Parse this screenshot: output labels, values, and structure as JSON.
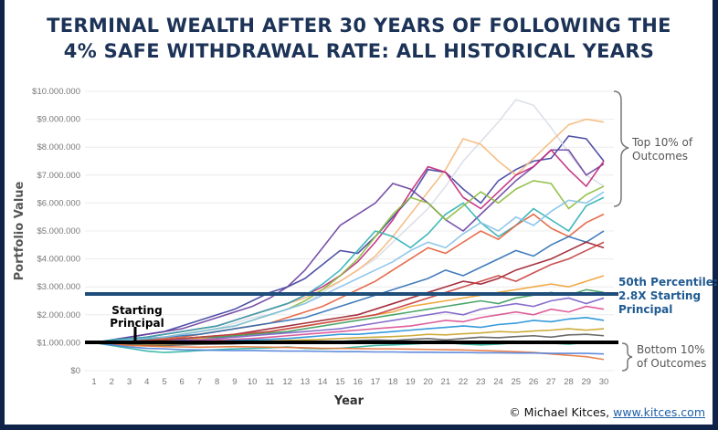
{
  "title_line1": "TERMINAL WEALTH AFTER 30 YEARS OF FOLLOWING THE",
  "title_line2": "4% SAFE WITHDRAWAL RATE: ALL HISTORICAL YEARS",
  "footer": {
    "copyright": "© Michael Kitces,",
    "link": "www.kitces.com"
  },
  "annotations": {
    "starting_principal_1": "Starting",
    "starting_principal_2": "Principal",
    "median_1": "50th Percentile:",
    "median_2": "2.8X Starting",
    "median_3": "Principal",
    "top_1": "Top 10% of",
    "top_2": "Outcomes",
    "bottom_1": "Bottom 10%",
    "bottom_2": "of Outcomes"
  },
  "colors": {
    "title": "#1c3357",
    "median": "#1f4e7a",
    "principal": "#000000",
    "median_text": "#1f5a91"
  },
  "chart_data": {
    "type": "line",
    "title": "Terminal Wealth After 30 Years of Following the 4% Safe Withdrawal Rate: All Historical Years",
    "xlabel": "Year",
    "ylabel": "Portfolio Value",
    "x": [
      1,
      2,
      3,
      4,
      5,
      6,
      7,
      8,
      9,
      10,
      11,
      12,
      13,
      14,
      15,
      16,
      17,
      18,
      19,
      20,
      21,
      22,
      23,
      24,
      25,
      26,
      27,
      28,
      29,
      30
    ],
    "xtick_labels": [
      "1",
      "2",
      "3",
      "4",
      "5",
      "6",
      "7",
      "8",
      "9",
      "10",
      "11",
      "12",
      "13",
      "14",
      "15",
      "16",
      "17",
      "18",
      "19",
      "20",
      "21",
      "22",
      "23",
      "24",
      "25",
      "26",
      "27",
      "28",
      "29",
      "30"
    ],
    "ylim": [
      0,
      10000000
    ],
    "value_unit": "millions of dollars",
    "ytick_labels": [
      "$0",
      "$1.000.000",
      "$2.000.000",
      "$3.000.000",
      "$4.000.000",
      "$5.000.000",
      "$6.000.000",
      "$7.000.000",
      "$8.000.000",
      "$9.000.000",
      "$10.000.000"
    ],
    "reference_lines": [
      {
        "name": "50th Percentile",
        "value": 2.75
      },
      {
        "name": "Starting Principal",
        "value": 1.0
      }
    ],
    "grid": true,
    "series": [
      {
        "color": "#3d3f9e",
        "values": [
          1.0,
          1.1,
          1.2,
          1.3,
          1.4,
          1.6,
          1.8,
          2.0,
          2.2,
          2.5,
          2.8,
          3.0,
          3.3,
          3.8,
          4.3,
          4.2,
          4.8,
          5.5,
          6.2,
          7.2,
          7.1,
          6.5,
          6.0,
          6.8,
          7.2,
          7.5,
          7.6,
          8.4,
          8.3,
          7.5
        ]
      },
      {
        "color": "#d8dde6",
        "values": [
          1.0,
          1.05,
          1.1,
          1.15,
          1.2,
          1.3,
          1.4,
          1.5,
          1.7,
          1.9,
          2.0,
          2.2,
          2.4,
          2.8,
          3.2,
          3.6,
          4.0,
          4.6,
          5.2,
          5.8,
          6.6,
          7.5,
          8.2,
          8.9,
          9.7,
          9.5,
          8.7,
          7.8,
          7.0,
          6.6
        ]
      },
      {
        "color": "#f5b87a",
        "values": [
          1.0,
          1.1,
          1.15,
          1.2,
          1.3,
          1.4,
          1.5,
          1.6,
          1.8,
          2.0,
          2.2,
          2.4,
          2.6,
          2.9,
          3.2,
          3.6,
          4.1,
          4.8,
          5.6,
          6.4,
          7.2,
          8.3,
          8.1,
          7.5,
          7.0,
          7.6,
          8.2,
          8.8,
          9.0,
          8.9
        ]
      },
      {
        "color": "#6a3fa0",
        "values": [
          1.0,
          1.1,
          1.2,
          1.3,
          1.4,
          1.5,
          1.7,
          1.9,
          2.1,
          2.3,
          2.6,
          3.0,
          3.6,
          4.4,
          5.2,
          5.6,
          6.0,
          6.7,
          6.5,
          6.0,
          5.4,
          5.0,
          5.6,
          6.2,
          6.8,
          7.3,
          7.9,
          7.9,
          7.0,
          7.4
        ]
      },
      {
        "color": "#c0267a",
        "values": [
          1.0,
          1.05,
          1.1,
          1.2,
          1.3,
          1.4,
          1.5,
          1.6,
          1.8,
          2.0,
          2.2,
          2.4,
          2.7,
          3.0,
          3.4,
          3.9,
          4.6,
          5.4,
          6.4,
          7.3,
          7.1,
          6.2,
          5.8,
          6.4,
          7.0,
          7.3,
          7.9,
          7.2,
          6.6,
          7.5
        ]
      },
      {
        "color": "#2db0b5",
        "values": [
          1.0,
          1.1,
          1.15,
          1.2,
          1.3,
          1.4,
          1.5,
          1.6,
          1.8,
          2.0,
          2.2,
          2.4,
          2.7,
          3.1,
          3.6,
          4.3,
          5.0,
          4.8,
          4.4,
          4.9,
          5.6,
          6.0,
          5.3,
          4.8,
          5.2,
          5.8,
          5.4,
          5.0,
          5.9,
          6.2
        ]
      },
      {
        "color": "#8bbb3c",
        "values": [
          1.0,
          1.05,
          1.1,
          1.15,
          1.2,
          1.3,
          1.4,
          1.5,
          1.6,
          1.8,
          2.0,
          2.2,
          2.5,
          2.9,
          3.4,
          4.0,
          4.8,
          5.6,
          6.2,
          6.0,
          5.4,
          5.9,
          6.4,
          6.0,
          6.5,
          6.8,
          6.7,
          5.8,
          6.3,
          6.6
        ]
      },
      {
        "color": "#e35d3a",
        "values": [
          1.0,
          1.0,
          1.05,
          1.1,
          1.15,
          1.2,
          1.3,
          1.4,
          1.5,
          1.6,
          1.7,
          1.9,
          2.1,
          2.3,
          2.6,
          2.9,
          3.2,
          3.6,
          4.0,
          4.4,
          4.2,
          4.6,
          5.0,
          4.7,
          5.2,
          5.6,
          5.1,
          4.8,
          5.3,
          5.6
        ]
      },
      {
        "color": "#2e6fb5",
        "values": [
          1.0,
          1.05,
          1.1,
          1.15,
          1.2,
          1.25,
          1.3,
          1.4,
          1.5,
          1.6,
          1.7,
          1.8,
          1.9,
          2.1,
          2.3,
          2.5,
          2.7,
          2.9,
          3.1,
          3.3,
          3.6,
          3.4,
          3.7,
          4.0,
          4.3,
          4.1,
          4.5,
          4.8,
          4.6,
          5.0
        ]
      },
      {
        "color": "#9b1d2b",
        "values": [
          1.0,
          1.0,
          1.05,
          1.05,
          1.1,
          1.15,
          1.2,
          1.25,
          1.3,
          1.4,
          1.5,
          1.6,
          1.7,
          1.8,
          1.9,
          2.0,
          2.2,
          2.4,
          2.6,
          2.8,
          3.0,
          3.2,
          3.1,
          3.3,
          3.6,
          3.8,
          4.0,
          4.3,
          4.6,
          4.4
        ]
      },
      {
        "color": "#f0a030",
        "values": [
          1.0,
          1.0,
          1.0,
          1.05,
          1.05,
          1.1,
          1.15,
          1.2,
          1.25,
          1.3,
          1.4,
          1.5,
          1.6,
          1.7,
          1.8,
          1.9,
          2.0,
          2.1,
          2.3,
          2.4,
          2.5,
          2.6,
          2.7,
          2.8,
          2.9,
          3.0,
          3.1,
          3.0,
          3.2,
          3.4
        ]
      },
      {
        "color": "#3a9b5c",
        "values": [
          1.0,
          1.05,
          1.05,
          1.1,
          1.1,
          1.15,
          1.2,
          1.2,
          1.25,
          1.3,
          1.35,
          1.4,
          1.5,
          1.6,
          1.7,
          1.8,
          1.9,
          2.0,
          2.1,
          2.2,
          2.3,
          2.4,
          2.5,
          2.4,
          2.6,
          2.7,
          2.8,
          2.7,
          2.9,
          2.8
        ]
      },
      {
        "color": "#7b5ec7",
        "values": [
          1.0,
          1.0,
          1.0,
          1.05,
          1.05,
          1.1,
          1.1,
          1.15,
          1.2,
          1.25,
          1.3,
          1.35,
          1.4,
          1.45,
          1.5,
          1.6,
          1.7,
          1.8,
          1.9,
          2.0,
          2.1,
          2.0,
          2.2,
          2.3,
          2.4,
          2.3,
          2.5,
          2.6,
          2.4,
          2.6
        ]
      },
      {
        "color": "#d94e8f",
        "values": [
          1.0,
          1.0,
          0.98,
          1.0,
          1.02,
          1.05,
          1.08,
          1.1,
          1.12,
          1.15,
          1.2,
          1.25,
          1.3,
          1.35,
          1.4,
          1.45,
          1.5,
          1.55,
          1.6,
          1.7,
          1.8,
          1.75,
          1.9,
          2.0,
          2.1,
          2.0,
          2.2,
          2.1,
          2.3,
          2.2
        ]
      },
      {
        "color": "#1f8fd6",
        "values": [
          1.0,
          0.98,
          0.95,
          0.95,
          0.97,
          1.0,
          1.02,
          1.05,
          1.08,
          1.1,
          1.12,
          1.15,
          1.2,
          1.25,
          1.3,
          1.3,
          1.35,
          1.4,
          1.45,
          1.5,
          1.55,
          1.6,
          1.55,
          1.65,
          1.7,
          1.8,
          1.75,
          1.85,
          1.9,
          1.8
        ]
      },
      {
        "color": "#c9a227",
        "values": [
          1.0,
          0.97,
          0.95,
          0.92,
          0.93,
          0.95,
          0.97,
          1.0,
          1.02,
          1.04,
          1.06,
          1.08,
          1.1,
          1.12,
          1.15,
          1.18,
          1.2,
          1.22,
          1.25,
          1.3,
          1.28,
          1.32,
          1.35,
          1.4,
          1.38,
          1.42,
          1.45,
          1.5,
          1.45,
          1.5
        ]
      },
      {
        "color": "#5a5a5a",
        "values": [
          1.0,
          0.95,
          0.92,
          0.9,
          0.9,
          0.92,
          0.94,
          0.95,
          0.96,
          0.98,
          1.0,
          1.02,
          1.0,
          1.03,
          1.05,
          1.08,
          1.1,
          1.08,
          1.12,
          1.15,
          1.1,
          1.15,
          1.2,
          1.18,
          1.22,
          1.25,
          1.2,
          1.28,
          1.3,
          1.25
        ]
      },
      {
        "color": "#2bb3a0",
        "values": [
          1.0,
          0.9,
          0.8,
          0.7,
          0.65,
          0.68,
          0.72,
          0.75,
          0.78,
          0.8,
          0.82,
          0.85,
          0.8,
          0.78,
          0.8,
          0.85,
          0.9,
          0.92,
          0.95,
          0.98,
          1.0,
          0.95,
          0.92,
          0.95,
          1.0,
          1.02,
          0.98,
          0.95,
          1.0,
          1.05
        ]
      },
      {
        "color": "#e8743b",
        "values": [
          1.0,
          0.95,
          0.9,
          0.88,
          0.86,
          0.85,
          0.84,
          0.85,
          0.86,
          0.85,
          0.84,
          0.83,
          0.82,
          0.8,
          0.8,
          0.79,
          0.78,
          0.78,
          0.77,
          0.76,
          0.75,
          0.74,
          0.72,
          0.7,
          0.68,
          0.65,
          0.6,
          0.55,
          0.5,
          0.4
        ]
      },
      {
        "color": "#4f7fd9",
        "values": [
          1.0,
          0.92,
          0.85,
          0.8,
          0.78,
          0.75,
          0.74,
          0.73,
          0.72,
          0.72,
          0.71,
          0.7,
          0.7,
          0.69,
          0.68,
          0.68,
          0.67,
          0.67,
          0.66,
          0.66,
          0.65,
          0.65,
          0.64,
          0.64,
          0.63,
          0.63,
          0.62,
          0.62,
          0.62,
          0.6
        ]
      },
      {
        "color": "#c73f3f",
        "values": [
          1.0,
          1.02,
          1.05,
          1.08,
          1.1,
          1.15,
          1.2,
          1.25,
          1.3,
          1.35,
          1.4,
          1.5,
          1.6,
          1.7,
          1.8,
          1.9,
          2.0,
          2.2,
          2.4,
          2.6,
          2.8,
          3.0,
          3.2,
          3.4,
          3.2,
          3.5,
          3.8,
          4.0,
          4.3,
          4.6
        ]
      },
      {
        "color": "#84c1e8",
        "values": [
          1.0,
          1.05,
          1.1,
          1.15,
          1.2,
          1.3,
          1.4,
          1.5,
          1.6,
          1.8,
          2.0,
          2.2,
          2.4,
          2.7,
          3.0,
          3.3,
          3.6,
          3.9,
          4.3,
          4.6,
          4.4,
          4.9,
          5.3,
          5.0,
          5.5,
          5.2,
          5.7,
          6.1,
          6.0,
          6.4
        ]
      }
    ]
  }
}
